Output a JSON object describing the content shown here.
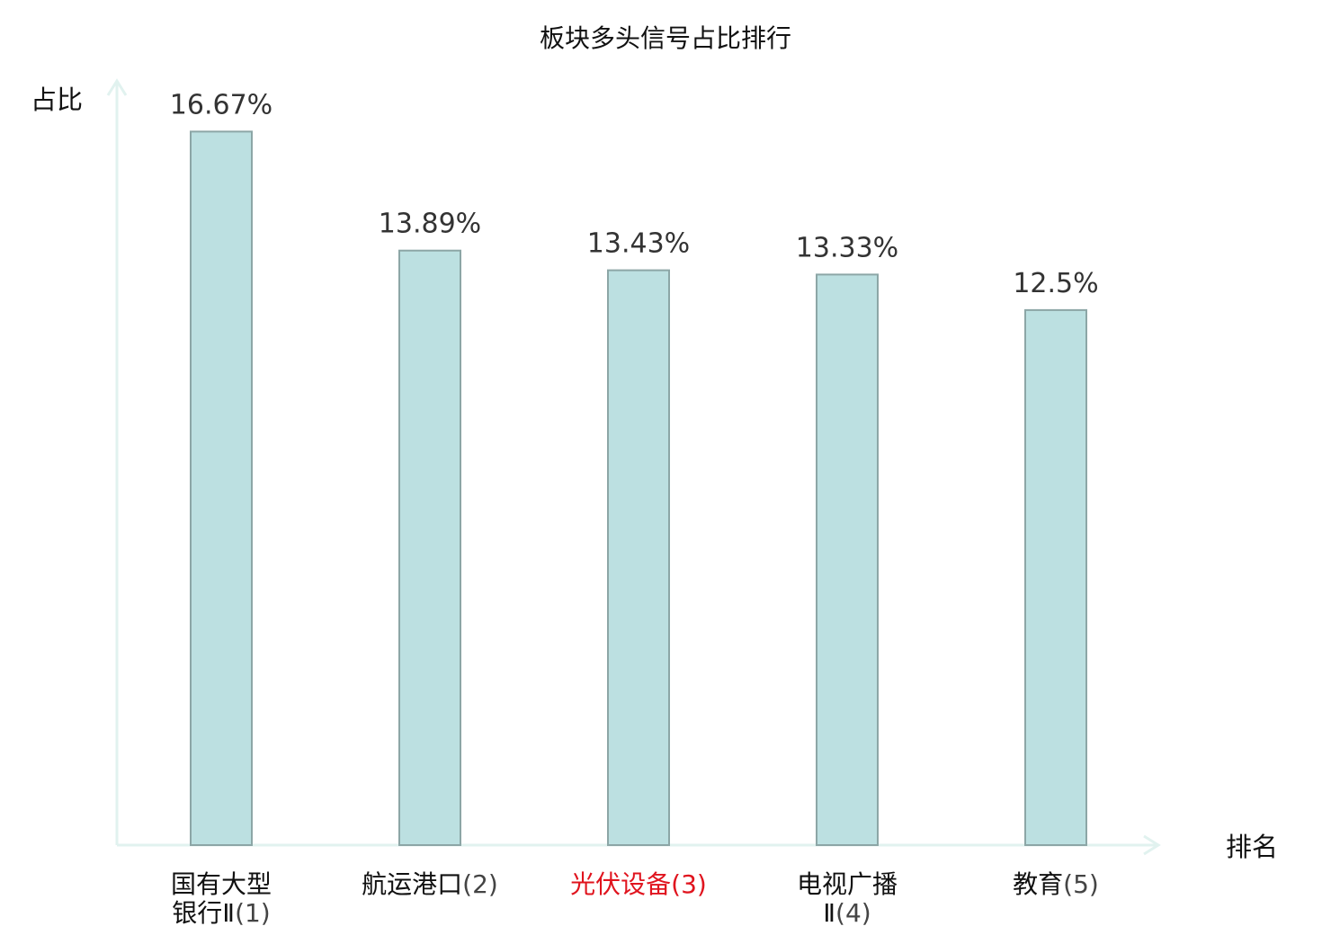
{
  "chart_data": {
    "type": "bar",
    "title": "板块多头信号占比排行",
    "ylabel": "占比",
    "xlabel": "排名",
    "categories": [
      {
        "lines": [
          "国有大型",
          "银行Ⅱ"
        ],
        "rank": "(1)"
      },
      {
        "lines": [
          "航运港口"
        ],
        "rank": "(2)"
      },
      {
        "lines": [
          "光伏设备"
        ],
        "rank": "(3)",
        "highlight": true
      },
      {
        "lines": [
          "电视广播",
          "Ⅱ"
        ],
        "rank": "(4)"
      },
      {
        "lines": [
          "教育"
        ],
        "rank": "(5)"
      }
    ],
    "values": [
      16.67,
      13.89,
      13.43,
      13.33,
      12.5
    ],
    "value_labels": [
      "16.67%",
      "13.89%",
      "13.43%",
      "13.33%",
      "12.5%"
    ],
    "ylim": [
      0,
      18.4
    ],
    "grid": false,
    "colors": {
      "bar_fill": "#bce0e1",
      "bar_stroke": "#8ca6a6",
      "axis": "#e1f2ef",
      "highlight_label": "#e0141e"
    }
  }
}
